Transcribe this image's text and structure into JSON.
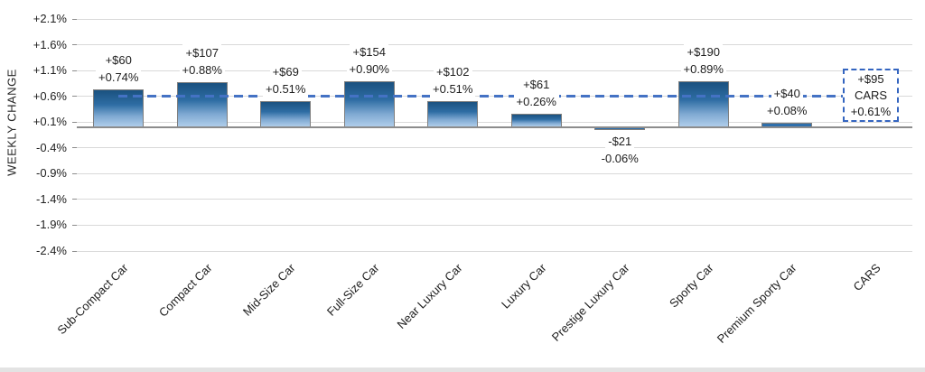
{
  "colors": {
    "bar_gradient_top": "#1A517F",
    "bar_gradient_mid": "#2E6DA4",
    "bar_gradient_low": "#7FA9D2",
    "bar_gradient_bottom": "#AFCDEA",
    "bar_border": "#7F7F7F",
    "small_bar_fill": "#2E6FAC",
    "average_line": "#4472C4",
    "box_border": "#3465C0",
    "gridline": "#D9D9D9",
    "axis_line": "#8C8C8C",
    "text": "#202020"
  },
  "chart_data": {
    "type": "bar",
    "ylabel": "WEEKLY CHANGE",
    "grid": true,
    "legend": false,
    "ylim": [
      -2.4,
      2.1
    ],
    "y_tick_step": 0.5,
    "y_ticks": [
      "+2.1%",
      "+1.6%",
      "+1.1%",
      "+0.6%",
      "+0.1%",
      "-0.4%",
      "-0.9%",
      "-1.4%",
      "-1.9%",
      "-2.4%"
    ],
    "y_tick_values": [
      2.1,
      1.6,
      1.1,
      0.6,
      0.1,
      -0.4,
      -0.9,
      -1.4,
      -1.9,
      -2.4
    ],
    "categories": [
      "Sub-Compact Car",
      "Compact Car",
      "Mid-Size Car",
      "Full-Size Car",
      "Near Luxury Car",
      "Luxury Car",
      "Prestige Luxury Car",
      "Sporty Car",
      "Premium Sporty Car",
      "CARS"
    ],
    "bars": [
      {
        "category": "Sub-Compact Car",
        "dollar": "+$60",
        "pct": "+0.74%",
        "value": 0.74
      },
      {
        "category": "Compact Car",
        "dollar": "+$107",
        "pct": "+0.88%",
        "value": 0.88
      },
      {
        "category": "Mid-Size Car",
        "dollar": "+$69",
        "pct": "+0.51%",
        "value": 0.51
      },
      {
        "category": "Full-Size Car",
        "dollar": "+$154",
        "pct": "+0.90%",
        "value": 0.9
      },
      {
        "category": "Near Luxury Car",
        "dollar": "+$102",
        "pct": "+0.51%",
        "value": 0.51
      },
      {
        "category": "Luxury Car",
        "dollar": "+$61",
        "pct": "+0.26%",
        "value": 0.26
      },
      {
        "category": "Prestige Luxury Car",
        "dollar": "-$21",
        "pct": "-0.06%",
        "value": -0.06
      },
      {
        "category": "Sporty Car",
        "dollar": "+$190",
        "pct": "+0.89%",
        "value": 0.89
      },
      {
        "category": "Premium Sporty Car",
        "dollar": "+$40",
        "pct": "+0.08%",
        "value": 0.08
      },
      {
        "category": "CARS",
        "dollar": "+$95",
        "pct": "+0.61%",
        "value": 0.61,
        "style": "dashed-box"
      }
    ],
    "average_line": {
      "value": 0.61,
      "style": "dashed",
      "box_lines": [
        "+$95",
        "CARS",
        "+0.61%"
      ]
    }
  }
}
